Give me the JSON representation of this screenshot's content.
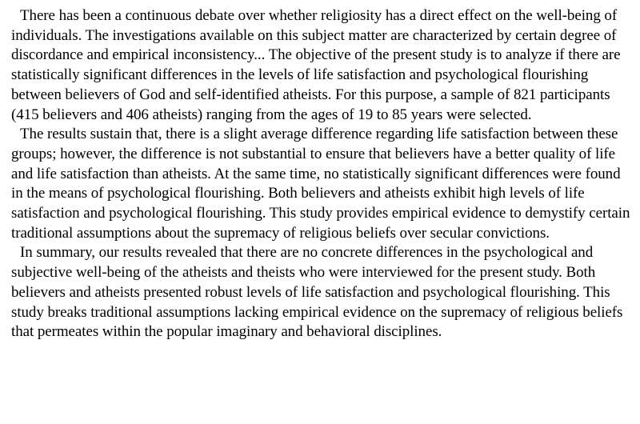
{
  "document": {
    "paragraphs": [
      "There has been a continuous debate over whether religiosity has a direct effect on the well-being of individuals. The investigations available on this subject matter are characterized by certain degree of discordance and empirical inconsistency... The objective of the present study is to analyze if there are statistically significant differences in the levels of life satisfaction and psychological flourishing between believers of God and self-identified atheists. For this purpose, a sample of 821 participants (415 believers and 406 atheists) ranging from the ages of 19 to 85 years were selected.",
      "The results sustain that, there is a slight average difference regarding life satisfaction between these groups; however, the difference is not substantial to ensure that believers have a better quality of life and life satisfaction than atheists. At the same time, no statistically significant differences were found in the means of psychological flourishing. Both believers and atheists exhibit high levels of life satisfaction and psychological flourishing. This study provides empirical evidence to demystify certain traditional assumptions about the supremacy of religious beliefs over secular convictions.",
      "In summary, our results revealed that there are no concrete differences in the psychological and subjective well-being of the atheists and theists who were interviewed for the present study. Both believers and atheists presented robust levels of life satisfaction and psychological flourishing. This study breaks traditional assumptions lacking empirical evidence on the supremacy of religious beliefs that permeates within the popular imaginary and behavioral disciplines."
    ]
  }
}
